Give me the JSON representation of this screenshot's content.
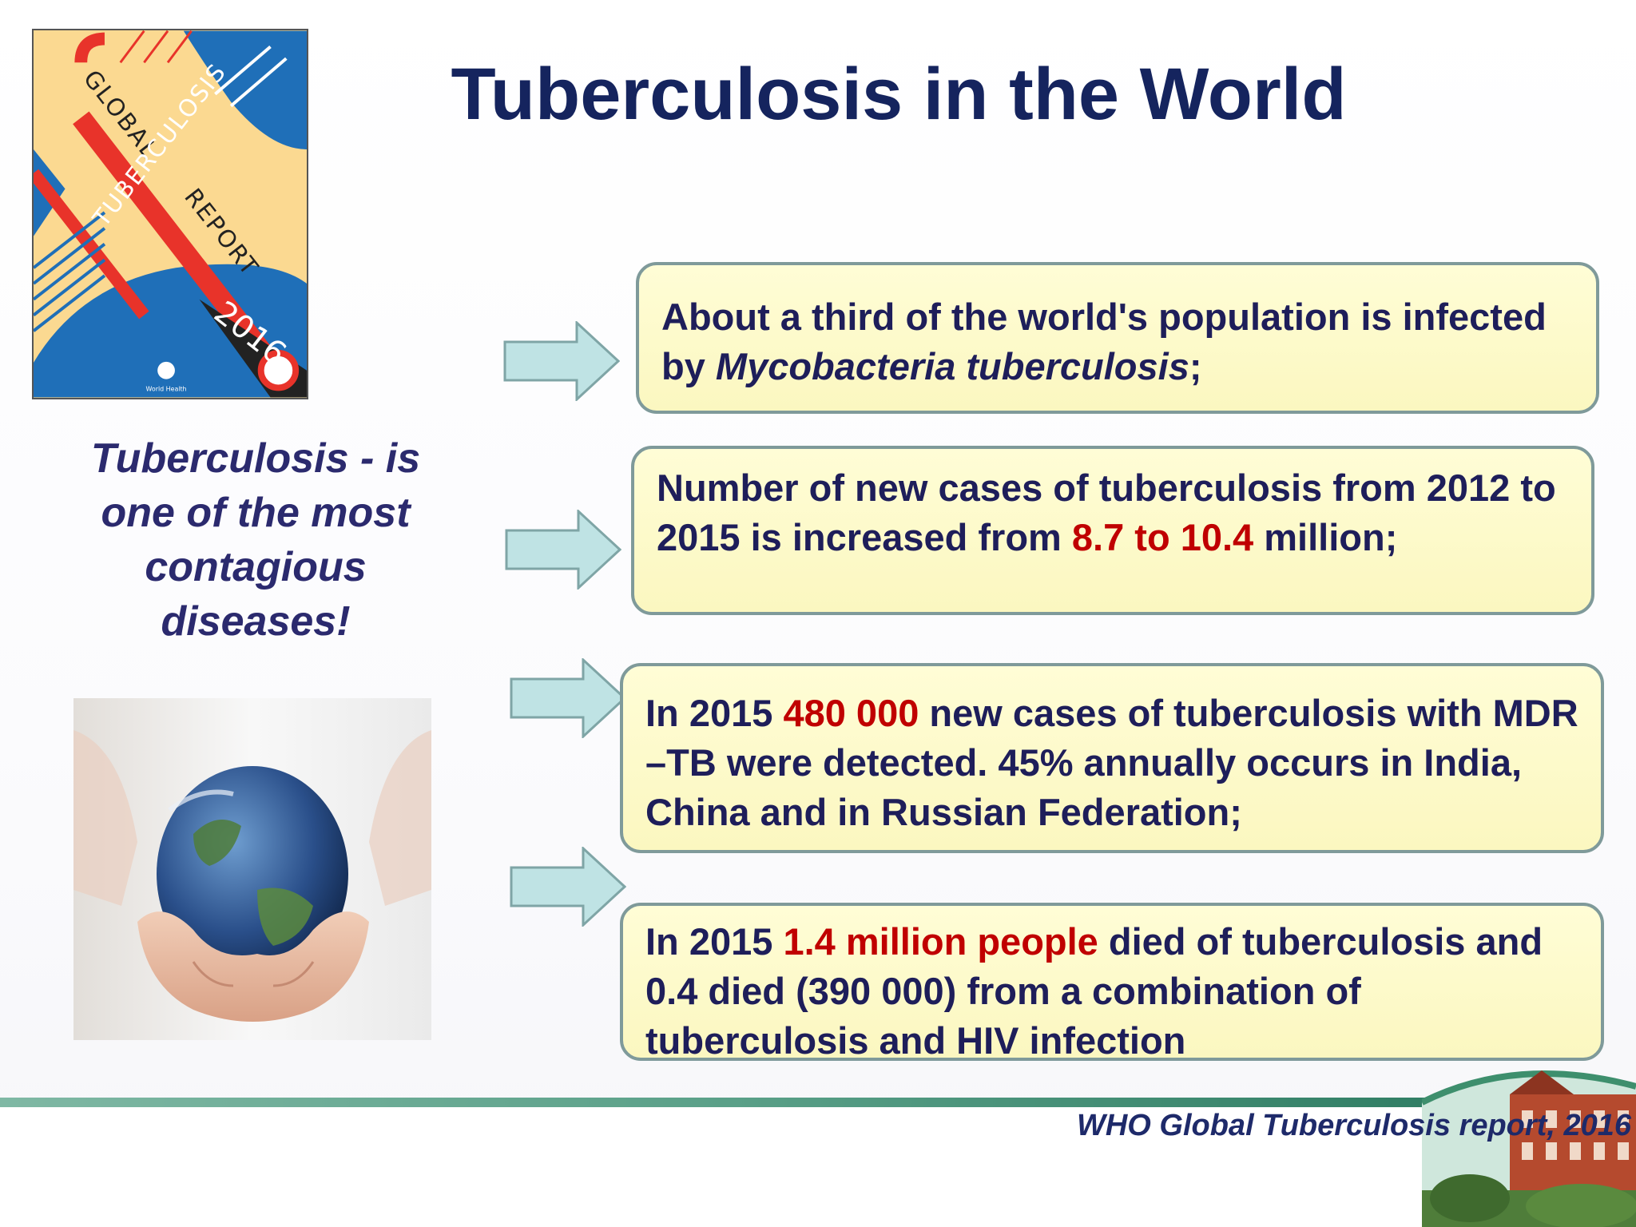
{
  "title": "Tuberculosis in the World",
  "cover": {
    "lines": [
      "GLOBAL",
      "TUBERCULOSIS",
      "REPORT",
      "2016"
    ],
    "publisher": "World Health Organization"
  },
  "tagline": "Tuberculosis - is one of the most contagious diseases!",
  "facts": [
    {
      "p1": "About a third of the world's population is infected by ",
      "p1_italic": "Mycobacteria tuberculosis",
      "p2": ";"
    },
    {
      "p1": "Number of new cases of tuberculosis from 2012 to 2015 is increased from ",
      "highlight": "8.7 to 10.4",
      "p2": " million;"
    },
    {
      "p1": "In 2015 ",
      "highlight": "480 000",
      "p2": " new cases of tuberculosis with MDR –TB were detected. 45% annually occurs in India, China and in Russian Federation;"
    },
    {
      "p1": "In 2015 ",
      "highlight": "1.4 million people",
      "p2": " died of tuberculosis and 0.4 died (390 000) from a combination of tuberculosis and HIV infection"
    }
  ],
  "source": "WHO Global Tuberculosis report, 2016",
  "colors": {
    "title": "#15245e",
    "text": "#1e1e5a",
    "highlight": "#c00000",
    "box_fill": "#fdf9c8",
    "box_border": "#7f9a9a",
    "arrow_fill": "#bfe3e4"
  }
}
